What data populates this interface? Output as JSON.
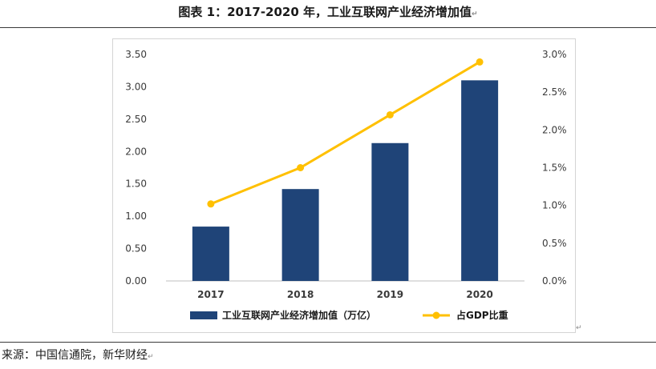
{
  "caption": "图表 1：2017-2020 年，工业互联网产业经济增加值",
  "source": "来源：中国信通院，新华财经",
  "para_mark": "↵",
  "colors": {
    "bar": "#1f4478",
    "line": "#ffc000",
    "axis_text": "#3a3a3a"
  },
  "chart_data": {
    "type": "bar+line",
    "categories": [
      "2017",
      "2018",
      "2019",
      "2020"
    ],
    "series": [
      {
        "name": "工业互联网产业经济增加值（万亿）",
        "type": "bar",
        "axis": "left",
        "values": [
          0.84,
          1.42,
          2.13,
          3.1
        ]
      },
      {
        "name": "占GDP比重",
        "type": "line",
        "axis": "right",
        "values": [
          1.02,
          1.5,
          2.2,
          2.9
        ]
      }
    ],
    "left_axis": {
      "min": 0,
      "max": 3.5,
      "ticks": [
        "0.00",
        "0.50",
        "1.00",
        "1.50",
        "2.00",
        "2.50",
        "3.00",
        "3.50"
      ]
    },
    "right_axis": {
      "min": 0,
      "max": 3.0,
      "ticks": [
        "0.0%",
        "0.5%",
        "1.0%",
        "1.5%",
        "2.0%",
        "2.5%",
        "3.0%"
      ]
    },
    "legend": [
      "工业互联网产业经济增加值（万亿）",
      "占GDP比重"
    ],
    "legend_position": "bottom",
    "grid": false
  }
}
